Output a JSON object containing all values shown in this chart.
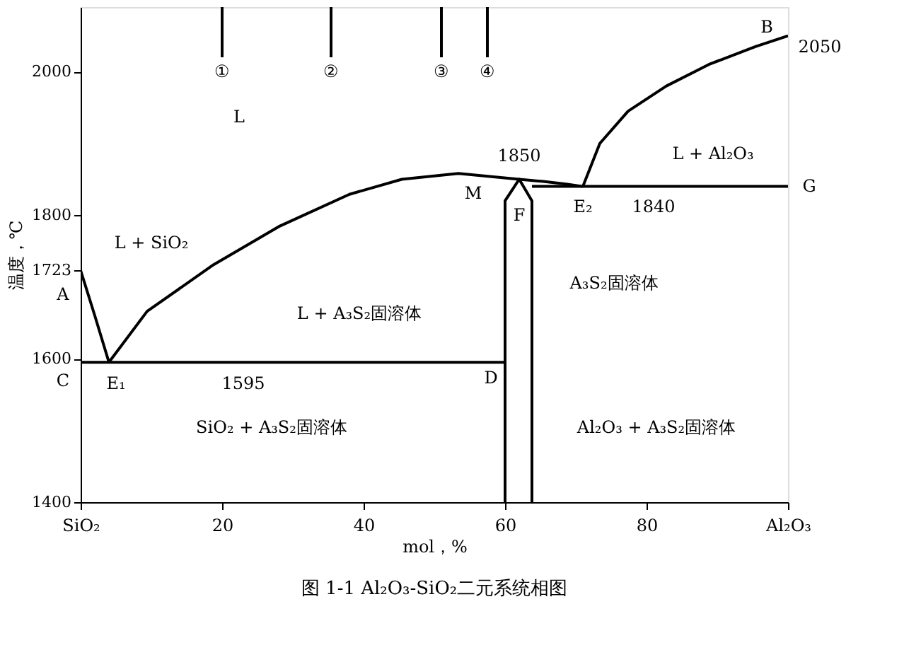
{
  "chart_data": {
    "type": "line",
    "title": "图 1-1  Al₂O₃-SiO₂二元系统相图",
    "xlabel": "mol，%",
    "ylabel": "温度，℃",
    "xlim": [
      0,
      100
    ],
    "ylim": [
      1400,
      2090
    ],
    "xticks": [
      {
        "value": 0,
        "label": "SiO₂"
      },
      20,
      40,
      60,
      80,
      {
        "value": 100,
        "label": "Al₂O₃"
      }
    ],
    "yticks": [
      1400,
      1600,
      1723,
      1800,
      2000
    ],
    "grid": false,
    "marker": "none",
    "line_style": "solid",
    "series": [
      {
        "color": "#000000",
        "x": [
          0,
          2,
          4
        ],
        "values": [
          1723,
          1660,
          1595
        ]
      },
      {
        "color": "#000000",
        "x": [
          4,
          9.4,
          18.8,
          28,
          38,
          45.4,
          53.4,
          62,
          65.4,
          68.8,
          71
        ],
        "values": [
          1595,
          1666,
          1731,
          1784,
          1829,
          1850,
          1858,
          1850,
          1847,
          1843,
          1840
        ]
      },
      {
        "color": "#000000",
        "x": [
          71,
          73.4,
          77.4,
          82.8,
          88.8,
          95.4,
          100
        ],
        "values": [
          1840,
          1900,
          1945,
          1980,
          2010,
          2035,
          2050
        ]
      },
      {
        "color": "#000000",
        "x": [
          0,
          60
        ],
        "values": [
          1595,
          1595
        ]
      },
      {
        "color": "#000000",
        "x": [
          63.8,
          100
        ],
        "values": [
          1840,
          1840
        ]
      },
      {
        "color": "#000000",
        "x": [
          60,
          60,
          62,
          63.8,
          63.8
        ],
        "values": [
          1400,
          1820,
          1850,
          1820,
          1400
        ]
      },
      {
        "color": "#000000",
        "x": [
          20,
          20
        ],
        "values": [
          2090,
          2020
        ]
      },
      {
        "color": "#000000",
        "x": [
          35.4,
          35.4
        ],
        "values": [
          2090,
          2020
        ]
      },
      {
        "color": "#000000",
        "x": [
          51,
          51
        ],
        "values": [
          2090,
          2020
        ]
      },
      {
        "color": "#000000",
        "x": [
          57.5,
          57.5
        ],
        "values": [
          2090,
          2020
        ]
      }
    ],
    "annotations": [
      "①",
      "②",
      "③",
      "④",
      "L",
      "L + SiO₂",
      "L + A₃S₂固溶体",
      "SiO₂ + A₃S₂固溶体",
      "A₃S₂固溶体",
      "Al₂O₃ + A₃S₂固溶体",
      "L + Al₂O₃",
      "A",
      "C",
      "E₁",
      "1595",
      "D",
      "M",
      "F",
      "1850",
      "E₂",
      "1840",
      "G",
      "B",
      "2050"
    ]
  }
}
